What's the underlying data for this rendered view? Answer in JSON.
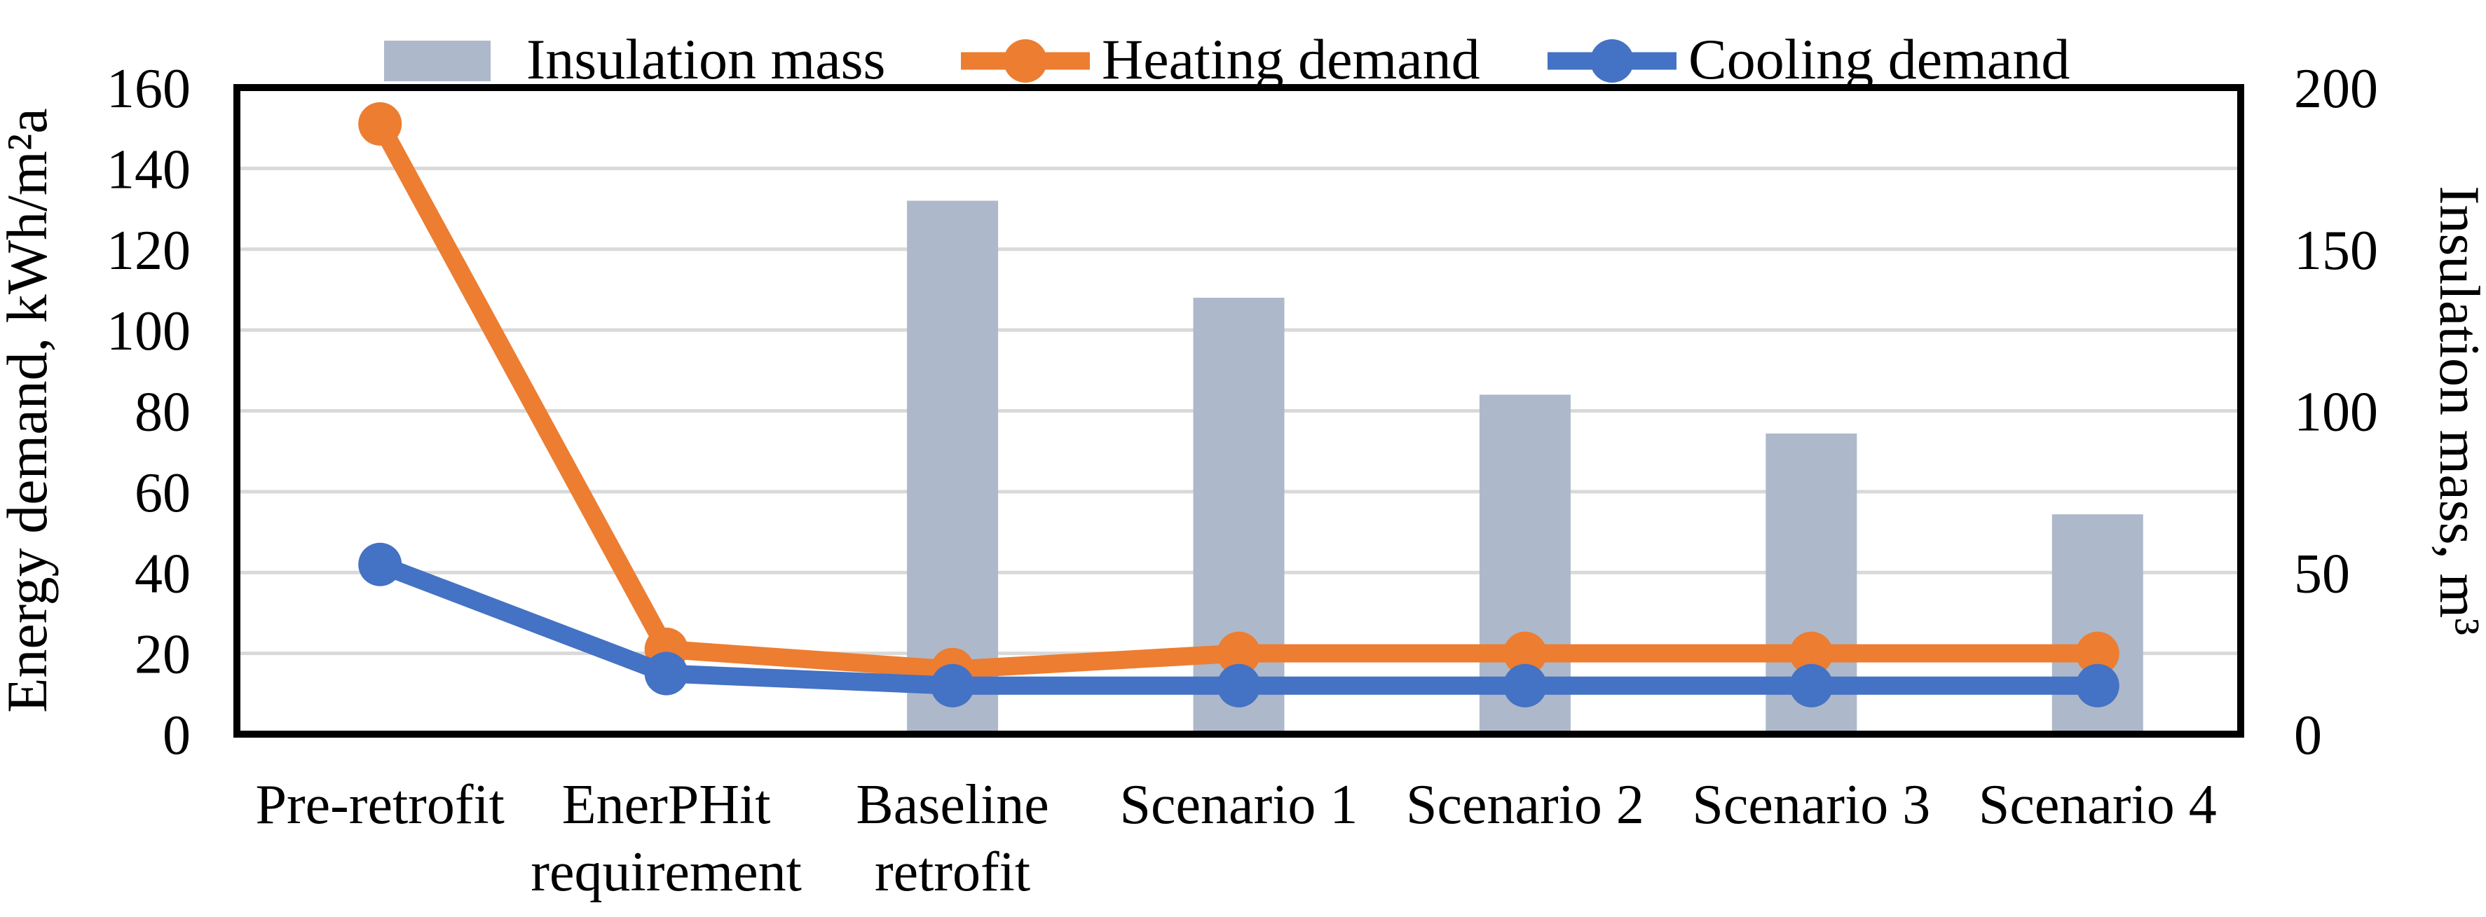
{
  "chart_data": {
    "type": "combo-bar-line",
    "title": "",
    "categories": [
      "Pre-retrofit",
      "EnerPHit requirement",
      "Baseline retrofit",
      "Scenario 1",
      "Scenario 2",
      "Scenario 3",
      "Scenario 4"
    ],
    "category_label_lines": [
      [
        "Pre-retrofit"
      ],
      [
        "EnerPHit",
        "requirement"
      ],
      [
        "Baseline",
        "retrofit"
      ],
      [
        "Scenario 1"
      ],
      [
        "Scenario 2"
      ],
      [
        "Scenario 3"
      ],
      [
        "Scenario 4"
      ]
    ],
    "series": [
      {
        "name": "Insulation mass",
        "type": "bar",
        "axis": "right",
        "color": "#ADB9CA",
        "values": [
          null,
          null,
          165,
          135,
          105,
          93,
          68
        ]
      },
      {
        "name": "Heating demand",
        "type": "line",
        "axis": "left",
        "color": "#ED7D31",
        "values": [
          151,
          21,
          16,
          20,
          20,
          20,
          20
        ]
      },
      {
        "name": "Cooling demand",
        "type": "line",
        "axis": "left",
        "color": "#4472C4",
        "values": [
          42,
          15,
          12,
          12,
          12,
          12,
          12
        ]
      }
    ],
    "left_axis": {
      "label": "Energy demand, kWh/m²a",
      "min": 0,
      "max": 160,
      "tick_step": 20,
      "ticks": [
        0,
        20,
        40,
        60,
        80,
        100,
        120,
        140,
        160
      ]
    },
    "right_axis": {
      "label": "Insulation mass, m³",
      "min": 0,
      "max": 200,
      "tick_step": 50,
      "ticks": [
        0,
        50,
        100,
        150,
        200
      ]
    },
    "grid": true,
    "legend_position": "top",
    "gridline_color": "#D9D9D9",
    "border_color": "#000000",
    "background_color": "#FFFFFF"
  }
}
